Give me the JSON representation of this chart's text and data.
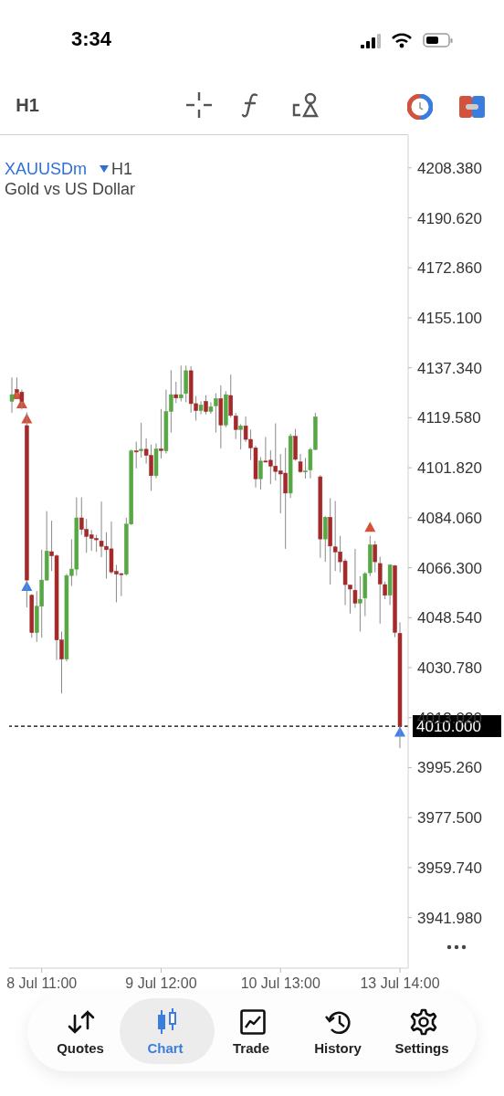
{
  "chart_data": {
    "type": "candlestick",
    "title": "XAUUSDm",
    "subtitle": "Gold vs US Dollar",
    "categories": [
      null,
      null,
      null,
      null,
      null,
      null,
      "8 Jul 11:00",
      null,
      null,
      null,
      null,
      null,
      null,
      null,
      null,
      null,
      null,
      null,
      null,
      null,
      null,
      null,
      null,
      null,
      null,
      null,
      null,
      null,
      null,
      null,
      "9 Jul 12:00",
      null,
      null,
      null,
      null,
      null,
      null,
      null,
      null,
      null,
      null,
      null,
      null,
      null,
      null,
      null,
      null,
      null,
      null,
      null,
      null,
      null,
      null,
      null,
      "10 Jul 13:00",
      null,
      null,
      null,
      null,
      null,
      null,
      null,
      null,
      null,
      null,
      null,
      null,
      null,
      null,
      null,
      null,
      null,
      null,
      null,
      null,
      null,
      null,
      null,
      "13 Jul 14:00"
    ],
    "ohlc": [
      [
        4125.4,
        4133.9,
        4121.3,
        4127.8
      ],
      [
        4129.6,
        4133.9,
        4127.3,
        4128.7
      ],
      [
        4128.7,
        4129.6,
        4122.5,
        4125.4
      ],
      [
        4116.8,
        4121.5,
        4052.2,
        4061.9
      ],
      [
        4056.5,
        4056.9,
        4041.4,
        4043.2
      ],
      [
        4043.2,
        4058.0,
        4039.9,
        4052.6
      ],
      [
        4052.6,
        4072.7,
        4041.4,
        4061.9
      ],
      [
        4061.9,
        4086.4,
        4061.7,
        4072.2
      ],
      [
        4072.0,
        4083.0,
        4065.1,
        4070.5
      ],
      [
        4070.5,
        4071.0,
        4033.5,
        4040.6
      ],
      [
        4040.6,
        4043.6,
        4021.6,
        4033.8
      ],
      [
        4033.8,
        4064.1,
        4033.0,
        4063.5
      ],
      [
        4063.5,
        4076.4,
        4059.8,
        4065.8
      ],
      [
        4065.8,
        4091.3,
        4063.5,
        4084.0
      ],
      [
        4084.0,
        4091.3,
        4078.0,
        4079.9
      ],
      [
        4079.9,
        4083.6,
        4071.6,
        4077.4
      ],
      [
        4078.0,
        4079.7,
        4072.3,
        4076.7
      ],
      [
        4076.7,
        4078.0,
        4071.9,
        4076.2
      ],
      [
        4075.8,
        4089.8,
        4070.0,
        4073.9
      ],
      [
        4073.9,
        4078.9,
        4062.4,
        4072.7
      ],
      [
        4073.0,
        4082.7,
        4064.1,
        4064.8
      ],
      [
        4065.0,
        4067.3,
        4054.0,
        4064.0
      ],
      [
        4064.2,
        4064.4,
        4056.2,
        4064.1
      ],
      [
        4064.0,
        4084.0,
        4063.5,
        4081.8
      ],
      [
        4081.8,
        4108.3,
        4081.5,
        4107.8
      ],
      [
        4107.8,
        4111.1,
        4101.6,
        4107.7
      ],
      [
        4107.8,
        4117.8,
        4105.4,
        4108.4
      ],
      [
        4108.4,
        4112.3,
        4103.3,
        4106.2
      ],
      [
        4106.2,
        4110.0,
        4093.6,
        4099.0
      ],
      [
        4099.0,
        4110.5,
        4098.1,
        4108.5
      ],
      [
        4108.5,
        4122.7,
        4105.1,
        4107.9
      ],
      [
        4107.8,
        4129.6,
        4106.9,
        4121.8
      ],
      [
        4121.8,
        4136.5,
        4114.3,
        4127.8
      ],
      [
        4127.8,
        4132.4,
        4124.8,
        4126.6
      ],
      [
        4126.6,
        4138.1,
        4125.4,
        4127.8
      ],
      [
        4128.2,
        4138.1,
        4125.1,
        4136.3
      ],
      [
        4136.3,
        4137.9,
        4121.4,
        4124.6
      ],
      [
        4124.6,
        4127.3,
        4118.6,
        4122.1
      ],
      [
        4122.1,
        4125.4,
        4120.8,
        4124.1
      ],
      [
        4125.4,
        4127.6,
        4120.8,
        4121.8
      ],
      [
        4121.8,
        4125.1,
        4121.0,
        4123.5
      ],
      [
        4123.8,
        4128.3,
        4114.3,
        4126.4
      ],
      [
        4126.4,
        4131.1,
        4108.7,
        4117.0
      ],
      [
        4117.0,
        4129.0,
        4116.2,
        4127.8
      ],
      [
        4127.5,
        4134.9,
        4119.7,
        4120.4
      ],
      [
        4120.2,
        4121.3,
        4112.0,
        4115.4
      ],
      [
        4115.4,
        4117.3,
        4108.3,
        4116.7
      ],
      [
        4116.7,
        4120.0,
        4111.0,
        4111.9
      ],
      [
        4111.9,
        4115.4,
        4104.6,
        4108.9
      ],
      [
        4108.9,
        4109.7,
        4094.8,
        4097.9
      ],
      [
        4097.9,
        4105.6,
        4094.1,
        4104.2
      ],
      [
        4104.2,
        4112.7,
        4104.0,
        4104.1
      ],
      [
        4104.5,
        4108.0,
        4096.0,
        4102.4
      ],
      [
        4102.4,
        4117.6,
        4097.3,
        4100.5
      ],
      [
        4100.7,
        4106.7,
        4085.6,
        4099.6
      ],
      [
        4099.9,
        4108.9,
        4073.0,
        4092.8
      ],
      [
        4092.8,
        4113.9,
        4091.1,
        4113.0
      ],
      [
        4113.0,
        4115.6,
        4104.3,
        4104.8
      ],
      [
        4103.9,
        4106.7,
        4100.0,
        4100.4
      ],
      [
        4100.6,
        4105.3,
        4098.0,
        4100.7
      ],
      [
        4101.0,
        4108.9,
        4098.1,
        4108.3
      ],
      [
        4108.3,
        4121.3,
        4108.1,
        4119.9
      ],
      [
        4098.6,
        4099.2,
        4069.8,
        4076.5
      ],
      [
        4076.5,
        4084.6,
        4068.4,
        4084.2
      ],
      [
        4084.2,
        4091.0,
        4060.3,
        4074.0
      ],
      [
        4073.7,
        4090.0,
        4065.1,
        4071.9
      ],
      [
        4071.9,
        4077.6,
        4064.6,
        4068.4
      ],
      [
        4068.7,
        4069.5,
        4053.0,
        4060.3
      ],
      [
        4060.1,
        4060.3,
        4050.0,
        4058.7
      ],
      [
        4058.3,
        4073.0,
        4052.1,
        4053.7
      ],
      [
        4053.7,
        4063.3,
        4043.6,
        4055.1
      ],
      [
        4055.5,
        4064.8,
        4049.1,
        4064.2
      ],
      [
        4064.5,
        4077.6,
        4063.3,
        4074.4
      ],
      [
        4074.4,
        4075.8,
        4064.6,
        4068.4
      ],
      [
        4067.8,
        4070.2,
        4046.4,
        4060.5
      ],
      [
        4060.3,
        4061.4,
        4055.1,
        4056.5
      ],
      [
        4056.5,
        4067.3,
        4053.0,
        4067.3
      ],
      [
        4067.0,
        4067.3,
        4041.6,
        4043.3
      ],
      [
        4043.0,
        4046.9,
        4002.2,
        4010.0
      ]
    ],
    "series": [
      {
        "type": "scatter",
        "color": "#d4503a",
        "marker": "triangle",
        "values": [
          null,
          4127.8,
          4124.6,
          4119.2,
          null,
          null,
          null,
          null,
          null,
          null,
          null,
          null,
          null,
          null,
          null,
          null,
          null,
          null,
          null,
          null,
          null,
          null,
          null,
          null,
          null,
          null,
          null,
          null,
          null,
          null,
          null,
          null,
          null,
          null,
          null,
          null,
          null,
          null,
          null,
          null,
          null,
          null,
          null,
          null,
          null,
          null,
          null,
          null,
          null,
          null,
          null,
          null,
          null,
          null,
          null,
          null,
          null,
          null,
          null,
          null,
          null,
          null,
          null,
          null,
          null,
          null,
          null,
          null,
          null,
          null,
          null,
          null,
          4080.7,
          null,
          null,
          null,
          null,
          null,
          null
        ]
      },
      {
        "type": "scatter",
        "color": "#3b82f0",
        "marker": "triangle",
        "values": [
          null,
          null,
          null,
          4059.7,
          null,
          null,
          null,
          null,
          null,
          null,
          null,
          null,
          null,
          null,
          null,
          null,
          null,
          null,
          null,
          null,
          null,
          null,
          null,
          null,
          null,
          null,
          null,
          null,
          null,
          null,
          null,
          null,
          null,
          null,
          null,
          null,
          null,
          null,
          null,
          null,
          null,
          null,
          null,
          null,
          null,
          null,
          null,
          null,
          null,
          null,
          null,
          null,
          null,
          null,
          null,
          null,
          null,
          null,
          null,
          null,
          null,
          null,
          null,
          null,
          null,
          null,
          null,
          null,
          null,
          null,
          null,
          null,
          null,
          null,
          null,
          null,
          null,
          null,
          4007.9
        ]
      }
    ],
    "ylim": [
      3924,
      4220
    ],
    "yticks": [
      {
        "value": 3941.98,
        "label": "3941.980"
      },
      {
        "value": 3959.74,
        "label": "3959.740"
      },
      {
        "value": 3977.5,
        "label": "3977.500"
      },
      {
        "value": 3995.26,
        "label": "3995.260"
      },
      {
        "value": 4013.02,
        "label": "4013.020"
      },
      {
        "value": 4030.78,
        "label": "4030.780"
      },
      {
        "value": 4048.54,
        "label": "4048.540"
      },
      {
        "value": 4066.3,
        "label": "4066.300"
      },
      {
        "value": 4084.06,
        "label": "4084.060"
      },
      {
        "value": 4101.82,
        "label": "4101.820"
      },
      {
        "value": 4119.58,
        "label": "4119.580"
      },
      {
        "value": 4137.34,
        "label": "4137.340"
      },
      {
        "value": 4155.1,
        "label": "4155.100"
      },
      {
        "value": 4172.86,
        "label": "4172.860"
      },
      {
        "value": 4190.62,
        "label": "4190.620"
      },
      {
        "value": 4208.38,
        "label": "4208.380"
      }
    ],
    "ref_lines": [
      {
        "axis": "y",
        "value": 4010,
        "label": "4010.000",
        "color": "#000000",
        "line_style": "dashed"
      }
    ],
    "annotations": [
      "3:34",
      "H1",
      "H1",
      "Quotes",
      "Chart",
      "Trade",
      "History",
      "Settings"
    ]
  }
}
